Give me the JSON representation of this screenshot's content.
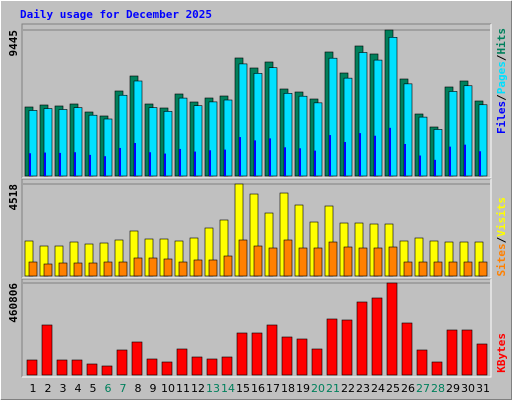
{
  "chart_data": {
    "type": "bar",
    "title": "Daily usage for December 2025",
    "legend_separator": "/",
    "categories": [
      1,
      2,
      3,
      4,
      5,
      6,
      7,
      8,
      9,
      10,
      11,
      12,
      13,
      14,
      15,
      16,
      17,
      18,
      19,
      20,
      21,
      22,
      23,
      24,
      25,
      26,
      27,
      28,
      29,
      30,
      31
    ],
    "category_colors": [
      "#000000",
      "#000000",
      "#000000",
      "#000000",
      "#000000",
      "#00805c",
      "#00805c",
      "#000000",
      "#000000",
      "#000000",
      "#000000",
      "#000000",
      "#00805c",
      "#00805c",
      "#000000",
      "#000000",
      "#000000",
      "#000000",
      "#000000",
      "#00805c",
      "#00805c",
      "#000000",
      "#000000",
      "#000000",
      "#000000",
      "#000000",
      "#00805c",
      "#00805c",
      "#000000",
      "#000000",
      "#000000"
    ],
    "panels": [
      {
        "ylim": [
          0,
          9445
        ],
        "yticks": [
          9445
        ],
        "series": [
          {
            "name": "Hits",
            "color": "#00805c",
            "values": [
              4464,
              4593,
              4529,
              4658,
              4140,
              3882,
              5499,
              6469,
              4658,
              4399,
              5305,
              4787,
              5046,
              5175,
              7634,
              6987,
              7375,
              5628,
              5434,
              4981,
              8022,
              6663,
              8410,
              7893,
              9445,
              6275,
              4011,
              3170,
              5758,
              6146,
              4852
            ]
          },
          {
            "name": "Pages",
            "color": "#00e0ff",
            "values": [
              4241,
              4363,
              4303,
              4425,
              3933,
              3688,
              5224,
              6146,
              4425,
              4179,
              5040,
              4548,
              4794,
              4916,
              7252,
              6638,
              7006,
              5347,
              5162,
              4732,
              7621,
              6330,
              7990,
              7498,
              8973,
              5961,
              3810,
              3012,
              5470,
              5839,
              4609
            ]
          },
          {
            "name": "Files",
            "color": "#0000ff",
            "values": [
              1473,
              1516,
              1495,
              1537,
              1366,
              1281,
              1815,
              2135,
              1537,
              1452,
              1751,
              1580,
              1665,
              1708,
              2519,
              2306,
              2434,
              1857,
              1793,
              1644,
              2647,
              2199,
              2775,
              2605,
              3117,
              2071,
              1324,
              1046,
              1900,
              2028,
              1601
            ]
          }
        ]
      },
      {
        "ylim": [
          0,
          4518
        ],
        "yticks": [
          4518
        ],
        "series": [
          {
            "name": "Visits",
            "color": "#ffff00",
            "values": [
              1719,
              1473,
              1473,
              1669,
              1571,
              1620,
              1768,
              2210,
              1817,
              1817,
              1719,
              1866,
              2357,
              2750,
              4518,
              4026,
              3093,
              4075,
              3486,
              2651,
              3437,
              2602,
              2602,
              2553,
              2553,
              1719,
              1866,
              1719,
              1669,
              1669,
              1669
            ]
          },
          {
            "name": "Sites",
            "color": "#ff8000",
            "values": [
              687,
              589,
              638,
              638,
              638,
              687,
              687,
              884,
              884,
              835,
              687,
              786,
              786,
              982,
              1768,
              1473,
              1375,
              1768,
              1375,
              1375,
              1669,
              1424,
              1375,
              1375,
              1424,
              687,
              687,
              687,
              687,
              687,
              687
            ]
          }
        ]
      },
      {
        "ylim": [
          0,
          460806
        ],
        "yticks": [
          460806
        ],
        "series": [
          {
            "name": "KBytes",
            "color": "#ff0000",
            "values": [
              75135,
              250450,
              75135,
              75135,
              55099,
              45081,
              125225,
              165297,
              80144,
              65117,
              130234,
              90162,
              80144,
              90162,
              210378,
              210378,
              250450,
              190342,
              180324,
              130234,
              280504,
              275495,
              365657,
              385693,
              460806,
              260468,
              125225,
              65117,
              225405,
              225405,
              155279
            ]
          }
        ]
      }
    ]
  }
}
